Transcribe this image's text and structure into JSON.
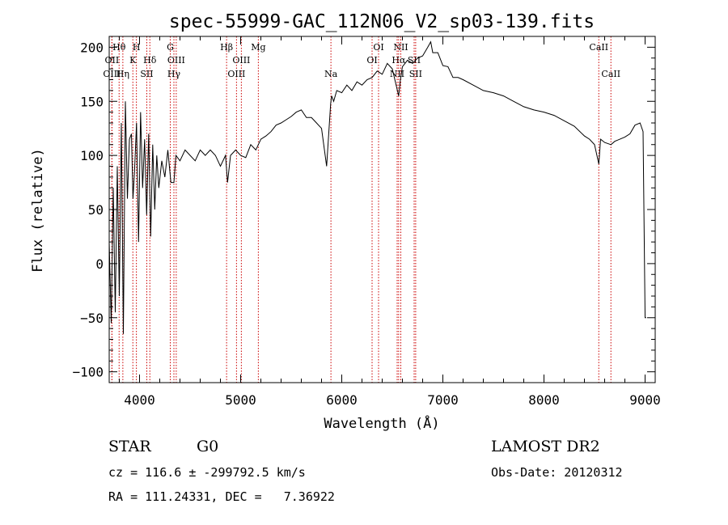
{
  "chart_data": {
    "type": "line",
    "title": "spec-55999-GAC_112N06_V2_sp03-139.fits",
    "xlabel": "Wavelength (Å)",
    "ylabel": "Flux (relative)",
    "xlim": [
      3700,
      9100
    ],
    "ylim": [
      -110,
      210
    ],
    "xticks": [
      4000,
      5000,
      6000,
      7000,
      8000,
      9000
    ],
    "yticks": [
      -100,
      -50,
      0,
      50,
      100,
      150,
      200
    ],
    "grid": false,
    "line_color": "#000000",
    "marker_color": "#cc0000",
    "lines": [
      {
        "label": "Hθ",
        "x": 3798,
        "row": 0
      },
      {
        "label": "H",
        "x": 3969,
        "row": 0
      },
      {
        "label": "G",
        "x": 4304,
        "row": 0
      },
      {
        "label": "Hβ",
        "x": 4861,
        "row": 0
      },
      {
        "label": "Mg",
        "x": 5175,
        "row": 0
      },
      {
        "label": "OI",
        "x": 6364,
        "row": 0
      },
      {
        "label": "NII",
        "x": 6584,
        "row": 0
      },
      {
        "label": "CaII",
        "x": 8542,
        "row": 0
      },
      {
        "label": "OII",
        "x": 3727,
        "row": 1
      },
      {
        "label": "K",
        "x": 3934,
        "row": 1
      },
      {
        "label": "Hδ",
        "x": 4102,
        "row": 1
      },
      {
        "label": "OIII",
        "x": 4363,
        "row": 1
      },
      {
        "label": "OIII",
        "x": 5007,
        "row": 1
      },
      {
        "label": "OI",
        "x": 6300,
        "row": 1
      },
      {
        "label": "Hα",
        "x": 6563,
        "row": 1
      },
      {
        "label": "SII",
        "x": 6716,
        "row": 1
      },
      {
        "label": "OIII",
        "x": 3727,
        "row": 2
      },
      {
        "label": "Hη",
        "x": 3835,
        "row": 2
      },
      {
        "label": "SII",
        "x": 4072,
        "row": 2
      },
      {
        "label": "Hγ",
        "x": 4340,
        "row": 2
      },
      {
        "label": "OIII",
        "x": 4959,
        "row": 2
      },
      {
        "label": "Na",
        "x": 5893,
        "row": 2
      },
      {
        "label": "NII",
        "x": 6548,
        "row": 2
      },
      {
        "label": "SII",
        "x": 6731,
        "row": 2
      },
      {
        "label": "CaII",
        "x": 8662,
        "row": 2
      }
    ],
    "series": [
      {
        "x": [
          3700,
          3720,
          3740,
          3760,
          3780,
          3800,
          3820,
          3840,
          3860,
          3880,
          3900,
          3920,
          3935,
          3950,
          3970,
          3990,
          4010,
          4030,
          4050,
          4070,
          4090,
          4110,
          4130,
          4150,
          4170,
          4190,
          4220,
          4250,
          4280,
          4310,
          4340,
          4360,
          4400,
          4450,
          4500,
          4550,
          4600,
          4650,
          4700,
          4750,
          4800,
          4850,
          4870,
          4900,
          4950,
          5000,
          5050,
          5100,
          5150,
          5200,
          5250,
          5300,
          5350,
          5400,
          5450,
          5500,
          5550,
          5600,
          5650,
          5700,
          5750,
          5800,
          5850,
          5890,
          5900,
          5920,
          5950,
          6000,
          6050,
          6100,
          6150,
          6200,
          6250,
          6300,
          6350,
          6400,
          6450,
          6500,
          6550,
          6563,
          6580,
          6600,
          6650,
          6700,
          6750,
          6800,
          6850,
          6880,
          6900,
          6950,
          7000,
          7050,
          7100,
          7150,
          7200,
          7300,
          7400,
          7500,
          7600,
          7700,
          7800,
          7900,
          8000,
          8100,
          8200,
          8300,
          8400,
          8450,
          8500,
          8542,
          8560,
          8600,
          8662,
          8700,
          8750,
          8800,
          8850,
          8900,
          8950,
          8980,
          9000,
          9010
        ],
        "values": [
          20,
          -55,
          70,
          -45,
          90,
          -30,
          130,
          -65,
          150,
          60,
          115,
          120,
          60,
          85,
          130,
          20,
          140,
          70,
          115,
          45,
          120,
          25,
          110,
          50,
          100,
          70,
          95,
          80,
          105,
          75,
          75,
          100,
          95,
          105,
          100,
          95,
          105,
          100,
          105,
          100,
          90,
          100,
          75,
          100,
          105,
          100,
          98,
          110,
          105,
          115,
          118,
          122,
          128,
          130,
          133,
          136,
          140,
          142,
          135,
          135,
          130,
          125,
          90,
          148,
          155,
          150,
          160,
          158,
          165,
          160,
          168,
          165,
          170,
          172,
          178,
          175,
          185,
          180,
          160,
          155,
          170,
          182,
          188,
          185,
          190,
          192,
          200,
          205,
          195,
          195,
          183,
          182,
          172,
          172,
          170,
          165,
          160,
          158,
          155,
          150,
          145,
          142,
          140,
          137,
          132,
          127,
          118,
          115,
          110,
          92,
          115,
          112,
          110,
          113,
          115,
          117,
          120,
          128,
          130,
          122,
          -50,
          -50
        ]
      }
    ]
  },
  "info": {
    "object_class": "STAR",
    "subclass": "G0",
    "survey": "LAMOST DR2",
    "velocity": "cz = 116.6 ± -299792.5 km/s",
    "obs_date": "Obs-Date: 20120312",
    "coordinates": "RA = 111.24331, DEC =   7.36922"
  }
}
